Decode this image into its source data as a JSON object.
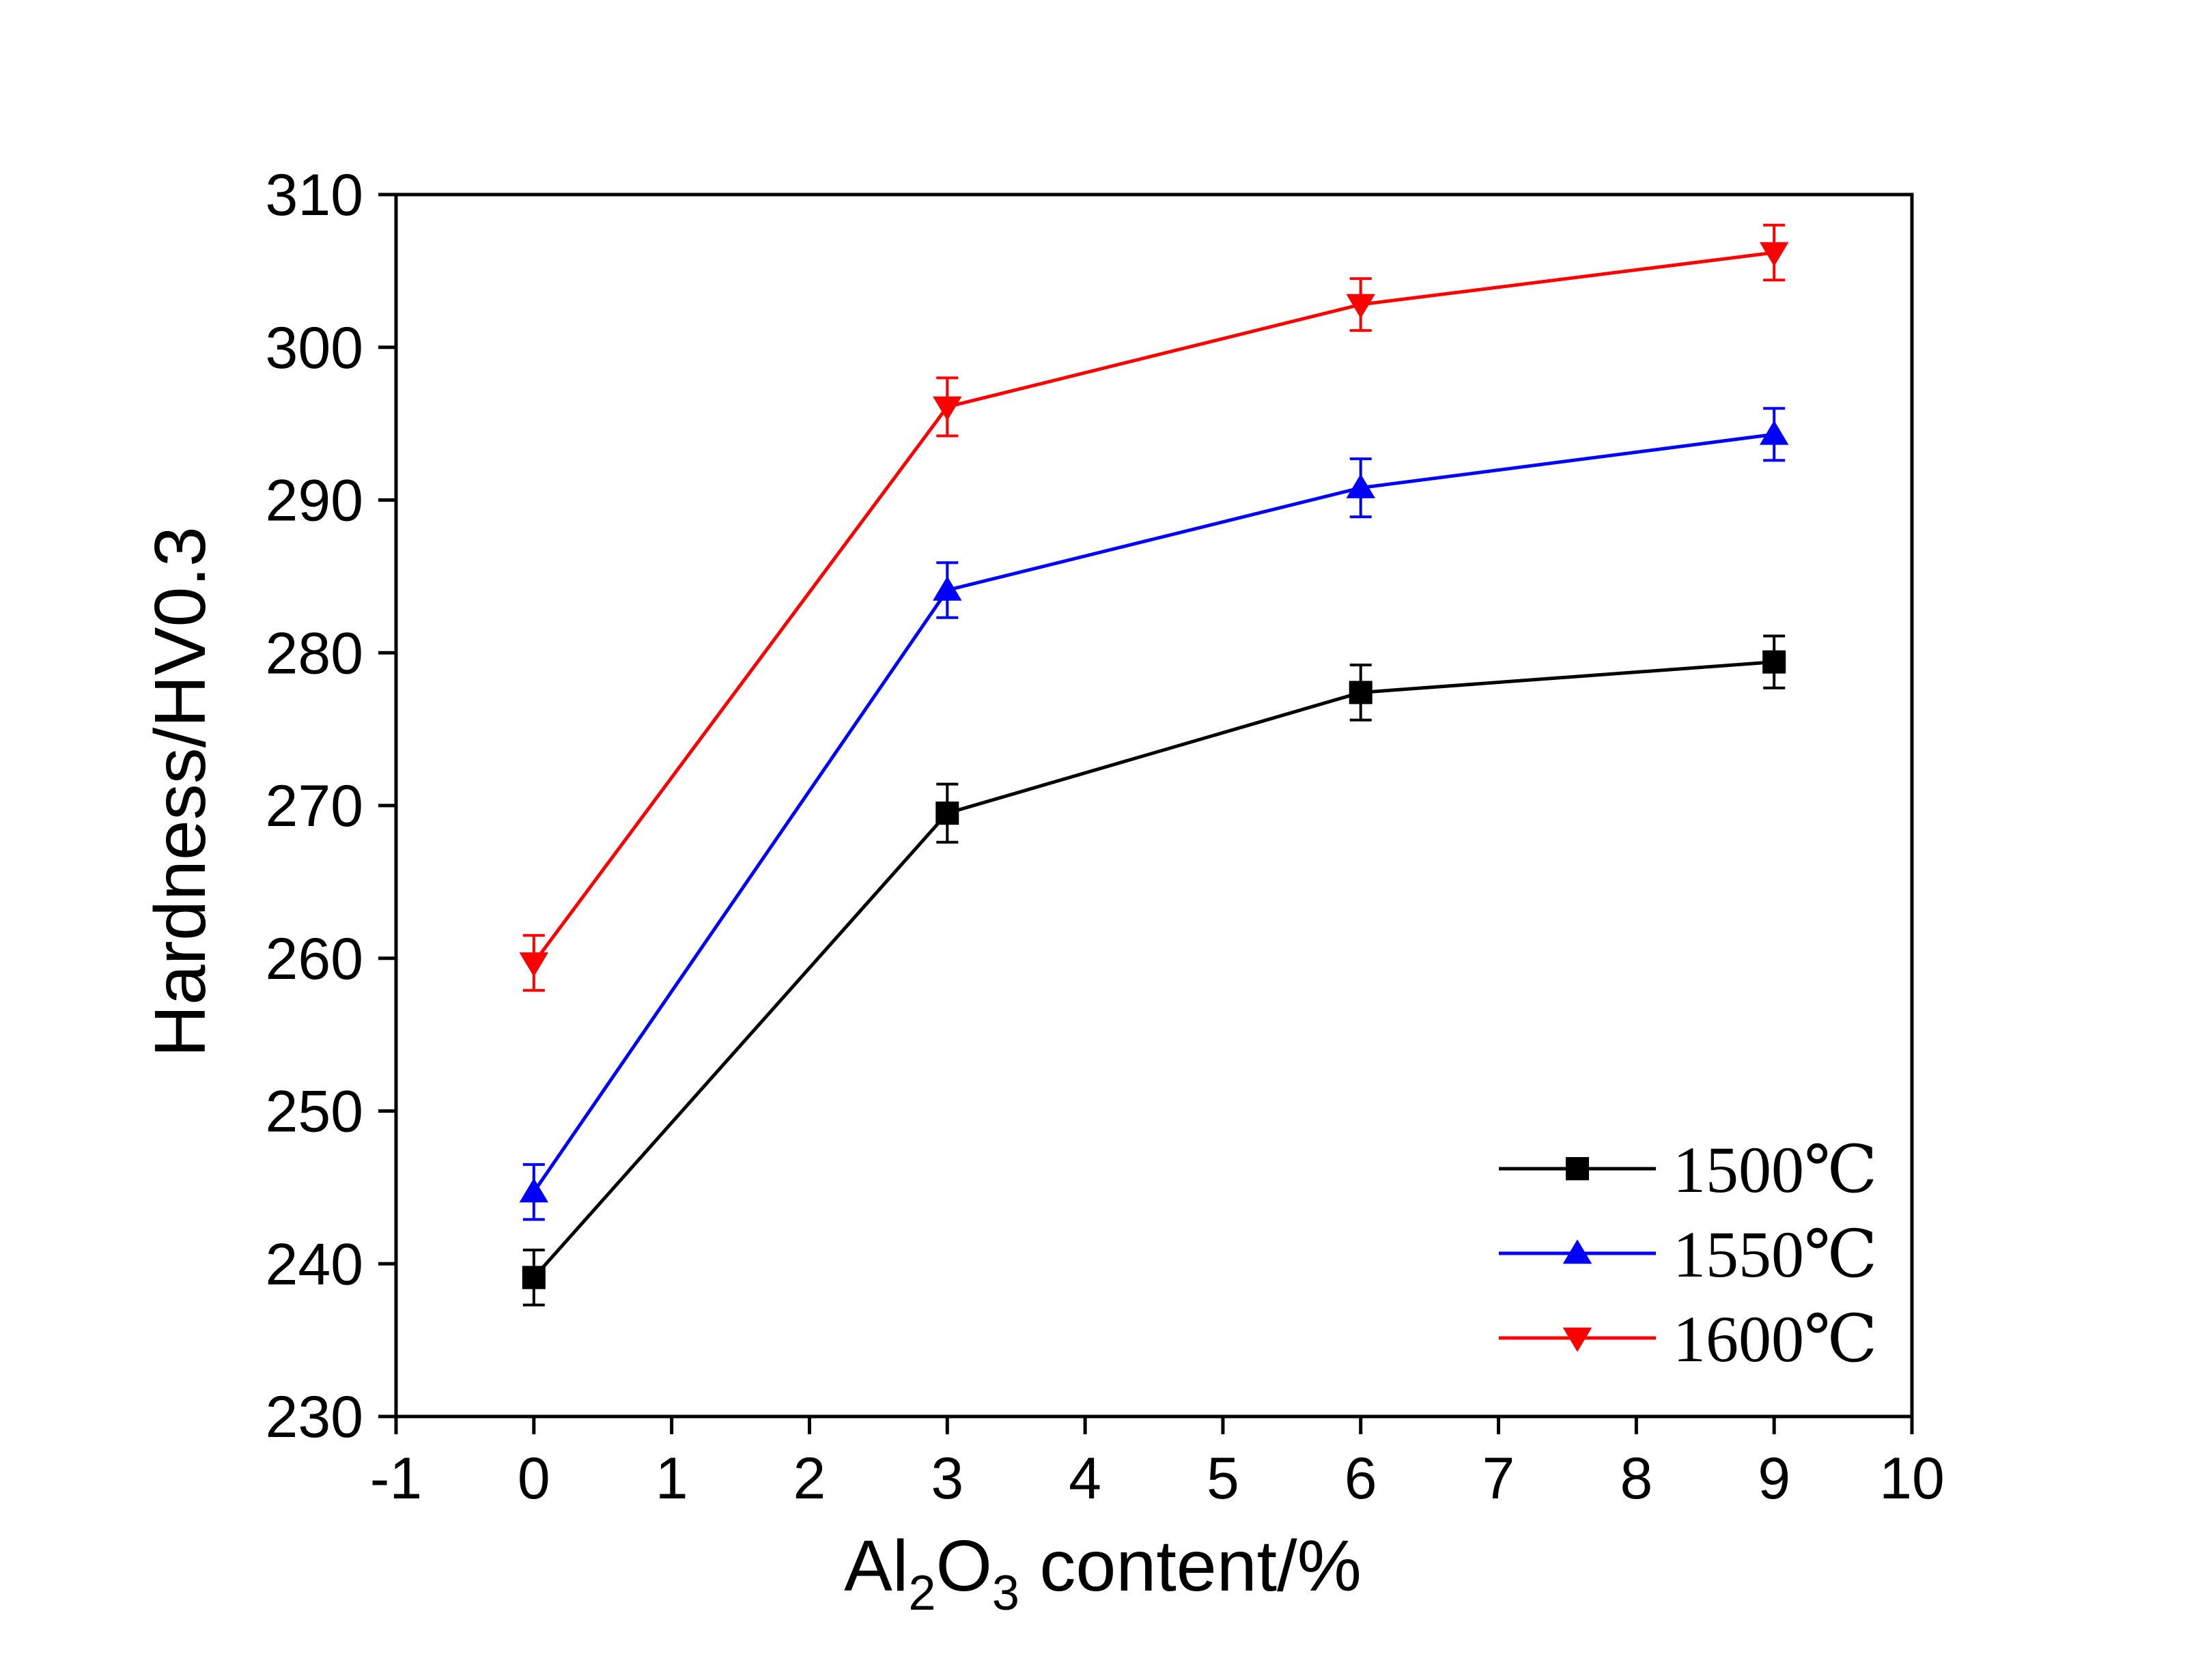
{
  "chart_data": {
    "type": "line",
    "xlabel": {
      "pre": "Al",
      "sub1": "2",
      "mid": "O",
      "sub2": "3",
      "post": " content/%"
    },
    "ylabel": "Hardness/HV0.3",
    "xlim": [
      -1,
      10
    ],
    "ylim": [
      230,
      310
    ],
    "xticks": [
      -1,
      0,
      1,
      2,
      3,
      4,
      5,
      6,
      7,
      8,
      9,
      10
    ],
    "yticks": [
      230,
      240,
      250,
      260,
      270,
      280,
      290,
      300,
      310
    ],
    "x": [
      0,
      3,
      6,
      9
    ],
    "series": [
      {
        "name": "1500℃",
        "color": "#000000",
        "marker": "square",
        "values": [
          239.1,
          269.5,
          277.4,
          279.4
        ],
        "errors": [
          1.8,
          1.9,
          1.8,
          1.7
        ]
      },
      {
        "name": "1550℃",
        "color": "#0000ff",
        "marker": "triangle-up",
        "values": [
          244.7,
          284.1,
          290.8,
          294.3
        ],
        "errors": [
          1.8,
          1.8,
          1.9,
          1.7
        ]
      },
      {
        "name": "1600℃",
        "color": "#ff0000",
        "marker": "triangle-down",
        "values": [
          259.7,
          296.1,
          302.8,
          306.2
        ],
        "errors": [
          1.8,
          1.9,
          1.7,
          1.8
        ]
      }
    ],
    "grid": false,
    "legend_position": "bottom-right"
  }
}
